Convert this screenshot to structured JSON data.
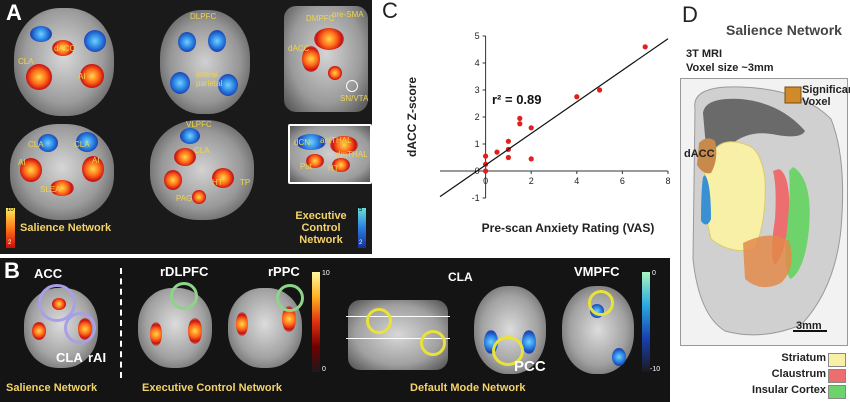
{
  "panel_A": {
    "letter": "A",
    "labels": {
      "dacc": "dACC",
      "cla1": "CLA",
      "ai1": "AI",
      "dlpfc": "DLPFC",
      "lateral_parietal": "lateral parietal",
      "dmpfc": "DMPFC",
      "pre_sma": "pre-SMA",
      "dacc2": "dACC",
      "sn_vta": "SN/VTA",
      "cla2": "CLA",
      "cla3": "CLA",
      "ai2": "AI",
      "ai3": "AI",
      "slea": "SLEA",
      "vlpfc": "VLPFC",
      "cla4": "CLA",
      "ht": "HT",
      "tp": "TP",
      "pag": "PAG",
      "dcn": "dCN",
      "antthal": "antTHAL",
      "dmthal": "dmTHAL",
      "put": "Put",
      "ht2": "HT"
    },
    "salience_title": "Salience Network",
    "executive_title": "Executive Control Network",
    "hot_scale": [
      "10",
      "2"
    ],
    "cool_scale": [
      "5",
      "2"
    ]
  },
  "panel_B": {
    "letter": "B",
    "labels": {
      "acc": "ACC",
      "cla": "CLA",
      "rai": "rAI",
      "rdlpfc": "rDLPFC",
      "rppc": "rPPC",
      "cla2": "CLA",
      "pcc": "PCC",
      "vmpfc": "VMPFC"
    },
    "scale_hot": [
      "10",
      "0"
    ],
    "scale_cool": [
      "0",
      "-10"
    ],
    "network_titles": [
      "Salience Network",
      "Executive Control Network",
      "Default Mode Network"
    ]
  },
  "panel_C": {
    "letter": "C",
    "annotation": "r² = 0.89"
  },
  "chart_data": {
    "type": "scatter",
    "xlabel": "Pre-scan Anxiety Rating (VAS)",
    "ylabel": "dACC Z-score",
    "xlim": [
      -2,
      8
    ],
    "ylim": [
      -1,
      5
    ],
    "xticks": [
      "0",
      "2",
      "4",
      "6",
      "8"
    ],
    "yticks": [
      "-1",
      "0",
      "1",
      "2",
      "3",
      "4",
      "5"
    ],
    "points": [
      {
        "x": 0,
        "y": 0.55
      },
      {
        "x": 0,
        "y": 0.25
      },
      {
        "x": 0,
        "y": 0.0
      },
      {
        "x": 0.5,
        "y": 0.7
      },
      {
        "x": 1.0,
        "y": 1.1
      },
      {
        "x": 1.0,
        "y": 0.5
      },
      {
        "x": 1.0,
        "y": 0.8
      },
      {
        "x": 1.5,
        "y": 1.95
      },
      {
        "x": 1.5,
        "y": 1.75
      },
      {
        "x": 2.0,
        "y": 1.6
      },
      {
        "x": 2.0,
        "y": 0.45
      },
      {
        "x": 4.0,
        "y": 2.75
      },
      {
        "x": 5.0,
        "y": 3.0
      },
      {
        "x": 7.0,
        "y": 4.6
      }
    ],
    "fit_line": [
      {
        "x": -2,
        "y": -0.95
      },
      {
        "x": 8,
        "y": 4.9
      }
    ],
    "point_color": "#e0201c",
    "grid": false
  },
  "panel_D": {
    "letter": "D",
    "title": "Salience Network",
    "mri_line1": "3T MRI",
    "mri_line2": "Voxel size ~3mm",
    "sig_voxel": "Significant Voxel",
    "dacc": "dACC",
    "scale_bar": "3mm",
    "legend": [
      {
        "label": "Striatum",
        "color": "#f7f0a6"
      },
      {
        "label": "Claustrum",
        "color": "#ec6e6e"
      },
      {
        "label": "Insular Cortex",
        "color": "#6dd36a"
      }
    ]
  }
}
